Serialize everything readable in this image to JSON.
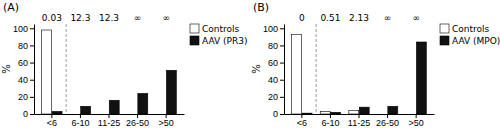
{
  "chart_data": [
    {
      "type": "bar",
      "title": "(A)",
      "categories": [
        "<6",
        "6-10",
        "11-25",
        "26-50",
        ">50"
      ],
      "series": [
        {
          "name": "Controls",
          "color": "#ffffff",
          "values": [
            98,
            0,
            0,
            0,
            0
          ]
        },
        {
          "name": "AAV (PR3)",
          "color": "#111111",
          "values": [
            3,
            9,
            16,
            24,
            51
          ]
        }
      ],
      "annotations": [
        "0.03",
        "12.3",
        "12.3",
        "∞",
        "∞"
      ],
      "ylabel": "%",
      "ylim": [
        0,
        105
      ],
      "yticks": [
        0,
        20,
        40,
        60,
        80,
        100
      ],
      "grid": false,
      "legend": "upper right"
    },
    {
      "type": "bar",
      "title": "(B)",
      "categories": [
        "<6",
        "6-10",
        "11-25",
        "26-50",
        ">50"
      ],
      "series": [
        {
          "name": "Controls",
          "color": "#ffffff",
          "values": [
            93,
            3,
            4,
            0,
            0
          ]
        },
        {
          "name": "AAV (MPO)",
          "color": "#111111",
          "values": [
            1,
            2,
            8,
            9,
            84
          ]
        }
      ],
      "annotations": [
        "0",
        "0.51",
        "2.13",
        "∞",
        "∞"
      ],
      "ylabel": "%",
      "ylim": [
        0,
        105
      ],
      "yticks": [
        0,
        20,
        40,
        60,
        80,
        100
      ],
      "grid": false,
      "legend": "upper right"
    }
  ]
}
